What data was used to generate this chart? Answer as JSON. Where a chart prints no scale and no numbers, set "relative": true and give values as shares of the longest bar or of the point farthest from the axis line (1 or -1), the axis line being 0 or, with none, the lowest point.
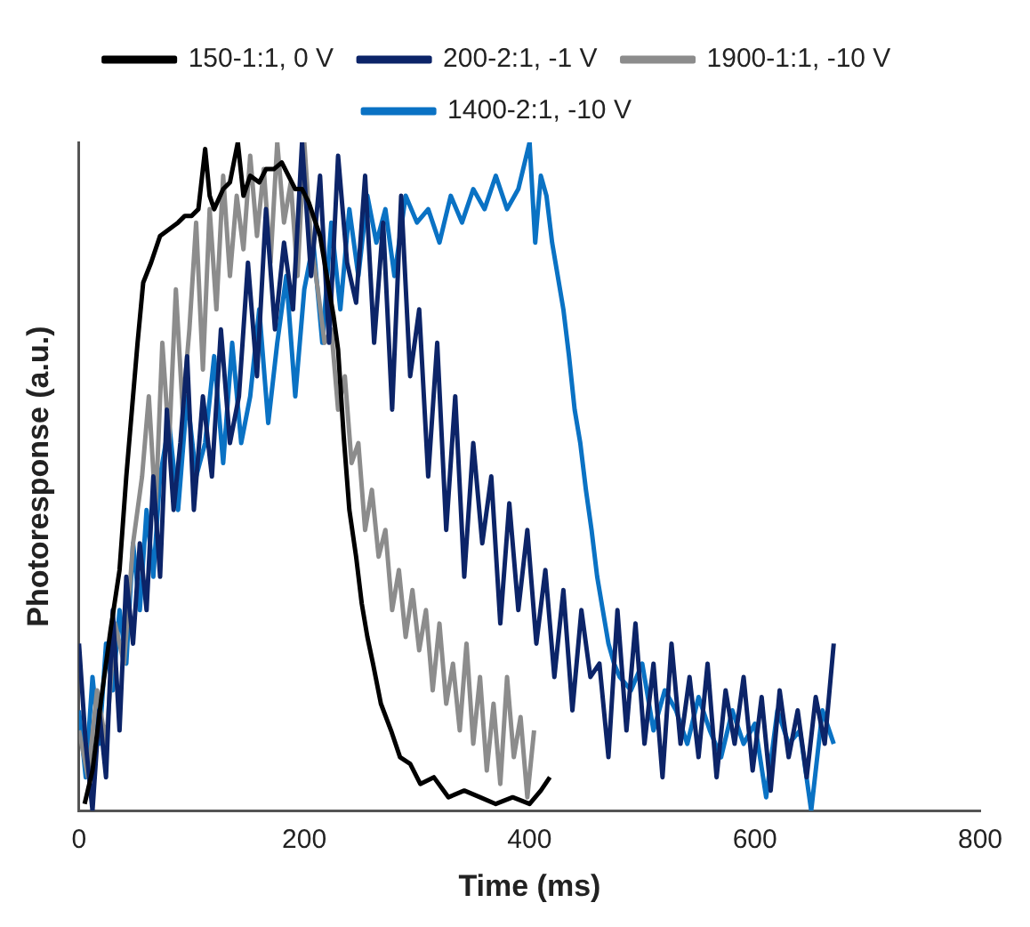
{
  "chart_data": {
    "type": "line",
    "relative": true,
    "xlabel": "Time (ms)",
    "ylabel": "Photoresponse (a.u.)",
    "xlim": [
      0,
      800
    ],
    "xticks": [
      0,
      200,
      400,
      600,
      800
    ],
    "grid": false,
    "legend": "top",
    "marker": "none",
    "line_style": "solid",
    "series": [
      {
        "name": "150-1:1, 0 V",
        "color": "#000000",
        "x": [
          5,
          12,
          20,
          28,
          36,
          42,
          47,
          52,
          57,
          64,
          72,
          80,
          88,
          94,
          100,
          106,
          112,
          116,
          120,
          128,
          134,
          141,
          146,
          152,
          160,
          166,
          173,
          180,
          186,
          192,
          198,
          204,
          210,
          214,
          220,
          226,
          230,
          235,
          240,
          246,
          251,
          256,
          261,
          268,
          277,
          285,
          294,
          303,
          315,
          328,
          342,
          356,
          370,
          385,
          400,
          410,
          418
        ],
        "values": [
          0.01,
          0.06,
          0.17,
          0.27,
          0.36,
          0.5,
          0.6,
          0.7,
          0.79,
          0.82,
          0.86,
          0.87,
          0.88,
          0.89,
          0.89,
          0.9,
          0.99,
          0.92,
          0.9,
          0.93,
          0.94,
          1.0,
          0.92,
          0.95,
          0.94,
          0.96,
          0.96,
          0.97,
          0.95,
          0.93,
          0.93,
          0.91,
          0.88,
          0.86,
          0.8,
          0.74,
          0.69,
          0.56,
          0.45,
          0.38,
          0.31,
          0.26,
          0.22,
          0.16,
          0.12,
          0.08,
          0.07,
          0.04,
          0.05,
          0.02,
          0.03,
          0.02,
          0.01,
          0.02,
          0.01,
          0.03,
          0.05
        ]
      },
      {
        "name": "200-2:1, -1 V",
        "color": "#0c2468",
        "x": [
          0,
          6,
          12,
          18,
          24,
          30,
          36,
          42,
          48,
          54,
          60,
          66,
          72,
          78,
          84,
          90,
          96,
          102,
          110,
          118,
          126,
          134,
          142,
          150,
          158,
          166,
          174,
          182,
          190,
          198,
          206,
          214,
          222,
          230,
          238,
          246,
          254,
          262,
          270,
          278,
          286,
          294,
          302,
          310,
          318,
          326,
          334,
          342,
          350,
          358,
          366,
          374,
          382,
          390,
          398,
          406,
          414,
          422,
          430,
          438,
          446,
          454,
          462,
          470,
          478,
          486,
          494,
          502,
          510,
          518,
          526,
          534,
          542,
          550,
          558,
          566,
          574,
          582,
          590,
          598,
          606,
          614,
          622,
          630,
          638,
          646,
          654,
          662,
          670
        ],
        "values": [
          0.25,
          0.1,
          0.0,
          0.15,
          0.05,
          0.3,
          0.12,
          0.35,
          0.25,
          0.4,
          0.3,
          0.5,
          0.35,
          0.6,
          0.45,
          0.55,
          0.68,
          0.45,
          0.62,
          0.5,
          0.72,
          0.55,
          0.62,
          0.82,
          0.65,
          0.9,
          0.72,
          0.85,
          0.75,
          1.0,
          0.8,
          0.95,
          0.7,
          0.98,
          0.82,
          0.76,
          0.95,
          0.7,
          0.88,
          0.6,
          0.92,
          0.65,
          0.75,
          0.5,
          0.7,
          0.42,
          0.62,
          0.35,
          0.55,
          0.4,
          0.5,
          0.28,
          0.46,
          0.3,
          0.42,
          0.25,
          0.36,
          0.2,
          0.33,
          0.15,
          0.3,
          0.2,
          0.22,
          0.08,
          0.3,
          0.12,
          0.28,
          0.1,
          0.22,
          0.05,
          0.25,
          0.1,
          0.2,
          0.08,
          0.22,
          0.05,
          0.18,
          0.1,
          0.2,
          0.06,
          0.17,
          0.03,
          0.18,
          0.08,
          0.15,
          0.05,
          0.17,
          0.1,
          0.25
        ]
      },
      {
        "name": "1900-1:1, -10 V",
        "color": "#8c8c8c",
        "x": [
          0,
          8,
          16,
          24,
          32,
          40,
          48,
          56,
          62,
          68,
          74,
          80,
          86,
          92,
          98,
          104,
          110,
          116,
          122,
          128,
          134,
          140,
          146,
          152,
          158,
          164,
          170,
          176,
          182,
          188,
          194,
          200,
          206,
          212,
          218,
          224,
          230,
          236,
          242,
          248,
          254,
          260,
          266,
          272,
          278,
          284,
          290,
          296,
          302,
          308,
          314,
          320,
          326,
          332,
          338,
          344,
          350,
          356,
          362,
          368,
          374,
          380,
          386,
          392,
          398,
          404
        ],
        "values": [
          0.12,
          0.05,
          0.18,
          0.1,
          0.28,
          0.22,
          0.4,
          0.5,
          0.62,
          0.45,
          0.7,
          0.55,
          0.78,
          0.6,
          0.72,
          0.88,
          0.66,
          0.9,
          0.75,
          0.95,
          0.8,
          0.92,
          0.84,
          0.98,
          0.86,
          0.96,
          0.82,
          1.0,
          0.88,
          0.94,
          0.8,
          1.0,
          0.85,
          0.78,
          0.7,
          0.72,
          0.6,
          0.65,
          0.52,
          0.55,
          0.42,
          0.48,
          0.38,
          0.42,
          0.3,
          0.36,
          0.26,
          0.33,
          0.24,
          0.3,
          0.18,
          0.28,
          0.16,
          0.22,
          0.12,
          0.25,
          0.1,
          0.2,
          0.06,
          0.16,
          0.04,
          0.2,
          0.08,
          0.14,
          0.02,
          0.12
        ]
      },
      {
        "name": "1400-2:1, -10 V",
        "color": "#0a72c4",
        "x": [
          0,
          6,
          12,
          18,
          24,
          30,
          36,
          42,
          48,
          54,
          60,
          66,
          72,
          80,
          88,
          96,
          104,
          112,
          120,
          128,
          136,
          144,
          152,
          160,
          168,
          176,
          184,
          192,
          200,
          208,
          216,
          224,
          232,
          240,
          248,
          256,
          264,
          272,
          280,
          290,
          300,
          310,
          320,
          330,
          340,
          350,
          360,
          370,
          380,
          390,
          400,
          405,
          410,
          415,
          420,
          425,
          430,
          435,
          440,
          445,
          450,
          455,
          460,
          465,
          470,
          475,
          480,
          490,
          500,
          510,
          520,
          530,
          540,
          550,
          560,
          570,
          580,
          590,
          600,
          610,
          620,
          630,
          640,
          650,
          660,
          670
        ],
        "values": [
          0.15,
          0.05,
          0.2,
          0.1,
          0.25,
          0.18,
          0.3,
          0.22,
          0.4,
          0.3,
          0.45,
          0.35,
          0.5,
          0.58,
          0.45,
          0.62,
          0.5,
          0.55,
          0.68,
          0.52,
          0.7,
          0.55,
          0.62,
          0.75,
          0.58,
          0.7,
          0.8,
          0.62,
          0.78,
          0.85,
          0.7,
          0.88,
          0.75,
          0.9,
          0.8,
          0.92,
          0.85,
          0.9,
          0.8,
          0.92,
          0.88,
          0.9,
          0.85,
          0.92,
          0.88,
          0.93,
          0.9,
          0.95,
          0.9,
          0.93,
          1.0,
          0.85,
          0.95,
          0.92,
          0.85,
          0.8,
          0.75,
          0.68,
          0.6,
          0.55,
          0.48,
          0.42,
          0.35,
          0.3,
          0.25,
          0.22,
          0.2,
          0.18,
          0.22,
          0.12,
          0.18,
          0.15,
          0.1,
          0.17,
          0.12,
          0.08,
          0.15,
          0.1,
          0.13,
          0.02,
          0.15,
          0.1,
          0.12,
          0.0,
          0.15,
          0.1
        ]
      }
    ]
  }
}
